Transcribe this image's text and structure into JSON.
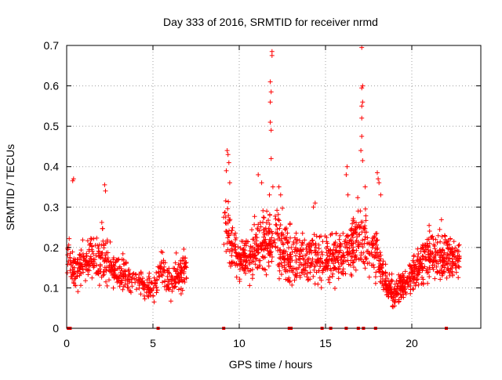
{
  "chart_data": {
    "type": "scatter",
    "title": "Day 333 of 2016, SRMTID for receiver nrmd",
    "xlabel": "GPS time / hours",
    "ylabel": "SRMTID / TECUs",
    "xlim": [
      0,
      24
    ],
    "ylim": [
      0,
      0.7
    ],
    "x_ticks": [
      0,
      5,
      10,
      15,
      20
    ],
    "x_tick_labels": [
      "0",
      "5",
      "10",
      "15",
      "20"
    ],
    "y_ticks": [
      0,
      0.1,
      0.2,
      0.3,
      0.4,
      0.5,
      0.6,
      0.7
    ],
    "y_tick_labels": [
      "0",
      "0.1",
      "0.2",
      "0.3",
      "0.4",
      "0.5",
      "0.6",
      "0.7"
    ],
    "grid": true,
    "marker": "+",
    "series_color": "#ff0000",
    "density_profile": {
      "segments": [
        {
          "start": 0.0,
          "end": 7.0,
          "points": 540
        },
        {
          "start": 9.1,
          "end": 18.6,
          "points": 900
        },
        {
          "start": 18.6,
          "end": 22.8,
          "points": 440
        }
      ],
      "envelope": [
        {
          "x": 0.0,
          "low": 0.1,
          "high": 0.3
        },
        {
          "x": 0.5,
          "low": 0.07,
          "high": 0.2
        },
        {
          "x": 1.0,
          "low": 0.1,
          "high": 0.22
        },
        {
          "x": 2.0,
          "low": 0.08,
          "high": 0.28
        },
        {
          "x": 3.0,
          "low": 0.08,
          "high": 0.2
        },
        {
          "x": 4.0,
          "low": 0.08,
          "high": 0.16
        },
        {
          "x": 5.0,
          "low": 0.05,
          "high": 0.14
        },
        {
          "x": 5.5,
          "low": 0.1,
          "high": 0.2
        },
        {
          "x": 6.0,
          "low": 0.06,
          "high": 0.16
        },
        {
          "x": 7.0,
          "low": 0.08,
          "high": 0.24
        },
        {
          "x": 9.1,
          "low": 0.18,
          "high": 0.4
        },
        {
          "x": 9.5,
          "low": 0.1,
          "high": 0.32
        },
        {
          "x": 10.0,
          "low": 0.1,
          "high": 0.22
        },
        {
          "x": 11.0,
          "low": 0.1,
          "high": 0.3
        },
        {
          "x": 12.0,
          "low": 0.12,
          "high": 0.32
        },
        {
          "x": 13.0,
          "low": 0.08,
          "high": 0.28
        },
        {
          "x": 14.0,
          "low": 0.08,
          "high": 0.26
        },
        {
          "x": 15.0,
          "low": 0.1,
          "high": 0.24
        },
        {
          "x": 16.0,
          "low": 0.08,
          "high": 0.28
        },
        {
          "x": 17.0,
          "low": 0.12,
          "high": 0.34
        },
        {
          "x": 18.0,
          "low": 0.08,
          "high": 0.28
        },
        {
          "x": 18.6,
          "low": 0.06,
          "high": 0.14
        },
        {
          "x": 19.0,
          "low": 0.05,
          "high": 0.12
        },
        {
          "x": 20.0,
          "low": 0.08,
          "high": 0.18
        },
        {
          "x": 21.0,
          "low": 0.1,
          "high": 0.28
        },
        {
          "x": 22.0,
          "low": 0.08,
          "high": 0.26
        },
        {
          "x": 22.8,
          "low": 0.1,
          "high": 0.25
        }
      ]
    },
    "highlighted_points": [
      {
        "x": 0.4,
        "y": 0.37
      },
      {
        "x": 0.35,
        "y": 0.365
      },
      {
        "x": 2.2,
        "y": 0.355
      },
      {
        "x": 2.25,
        "y": 0.34
      },
      {
        "x": 9.3,
        "y": 0.44
      },
      {
        "x": 9.35,
        "y": 0.43
      },
      {
        "x": 9.4,
        "y": 0.41
      },
      {
        "x": 9.25,
        "y": 0.39
      },
      {
        "x": 9.45,
        "y": 0.36
      },
      {
        "x": 11.1,
        "y": 0.38
      },
      {
        "x": 11.3,
        "y": 0.36
      },
      {
        "x": 11.75,
        "y": 0.33
      },
      {
        "x": 11.95,
        "y": 0.35
      },
      {
        "x": 11.85,
        "y": 0.42
      },
      {
        "x": 11.8,
        "y": 0.51
      },
      {
        "x": 11.85,
        "y": 0.49
      },
      {
        "x": 11.8,
        "y": 0.56
      },
      {
        "x": 11.85,
        "y": 0.585
      },
      {
        "x": 11.8,
        "y": 0.61
      },
      {
        "x": 11.9,
        "y": 0.675
      },
      {
        "x": 11.9,
        "y": 0.685
      },
      {
        "x": 12.3,
        "y": 0.35
      },
      {
        "x": 12.4,
        "y": 0.33
      },
      {
        "x": 14.4,
        "y": 0.31
      },
      {
        "x": 14.3,
        "y": 0.3
      },
      {
        "x": 16.3,
        "y": 0.33
      },
      {
        "x": 16.2,
        "y": 0.38
      },
      {
        "x": 16.25,
        "y": 0.4
      },
      {
        "x": 17.05,
        "y": 0.44
      },
      {
        "x": 17.15,
        "y": 0.415
      },
      {
        "x": 17.1,
        "y": 0.475
      },
      {
        "x": 17.1,
        "y": 0.52
      },
      {
        "x": 17.1,
        "y": 0.55
      },
      {
        "x": 17.15,
        "y": 0.56
      },
      {
        "x": 17.1,
        "y": 0.595
      },
      {
        "x": 17.15,
        "y": 0.6
      },
      {
        "x": 17.1,
        "y": 0.695
      },
      {
        "x": 17.3,
        "y": 0.35
      },
      {
        "x": 18.0,
        "y": 0.385
      },
      {
        "x": 18.05,
        "y": 0.37
      },
      {
        "x": 18.1,
        "y": 0.36
      },
      {
        "x": 18.2,
        "y": 0.33
      }
    ],
    "zero_markers": [
      0.1,
      0.2,
      5.3,
      9.1,
      12.9,
      13.0,
      14.8,
      15.3,
      16.2,
      16.9,
      17.2,
      17.9,
      22.0
    ]
  }
}
